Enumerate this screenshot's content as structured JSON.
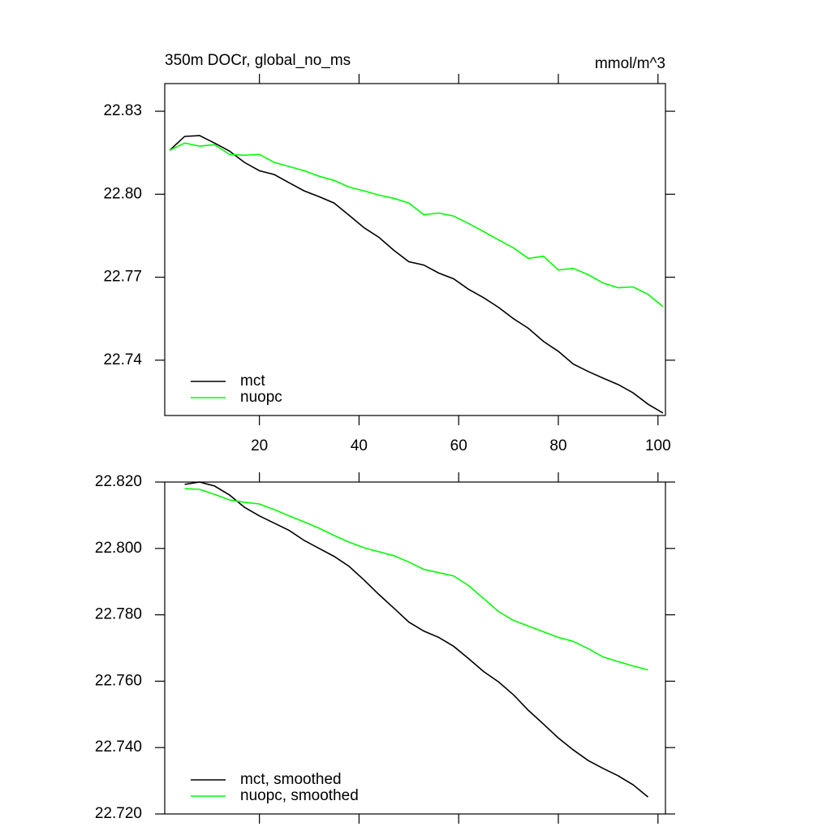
{
  "chart_data": [
    {
      "type": "line",
      "title": "350m DOCr, global_no_ms",
      "units": "mmol/m^3",
      "x": [
        2,
        5,
        8,
        11,
        14,
        17,
        20,
        23,
        26,
        29,
        32,
        35,
        38,
        41,
        44,
        47,
        50,
        53,
        56,
        59,
        62,
        65,
        68,
        71,
        74,
        77,
        80,
        83,
        86,
        89,
        92,
        95,
        98,
        101
      ],
      "series": [
        {
          "name": "mct",
          "color": "#000000",
          "values": [
            22.8159,
            22.8209,
            22.8212,
            22.8185,
            22.8156,
            22.8115,
            22.8085,
            22.8071,
            22.8041,
            22.8012,
            22.7991,
            22.7968,
            22.7924,
            22.7879,
            22.7844,
            22.7797,
            22.7756,
            22.7744,
            22.7715,
            22.7694,
            22.7656,
            22.7626,
            22.7591,
            22.755,
            22.7515,
            22.7468,
            22.7432,
            22.7386,
            22.7359,
            22.7335,
            22.7312,
            22.7282,
            22.7241,
            22.7209
          ]
        },
        {
          "name": "nuopc",
          "color": "#00ff00",
          "values": [
            22.8159,
            22.8185,
            22.8174,
            22.8179,
            22.8144,
            22.8141,
            22.8144,
            22.8115,
            22.81,
            22.8085,
            22.8065,
            22.805,
            22.8026,
            22.8012,
            22.7997,
            22.7985,
            22.7968,
            22.7926,
            22.7932,
            22.7921,
            22.7894,
            22.7865,
            22.7835,
            22.7806,
            22.7768,
            22.7776,
            22.7726,
            22.7732,
            22.7709,
            22.7679,
            22.7662,
            22.7665,
            22.7638,
            22.7594
          ]
        }
      ],
      "xlim": [
        1,
        101.5
      ],
      "xticks": [
        20,
        40,
        60,
        80,
        100
      ],
      "xtick_labels": true,
      "ylim": [
        22.72,
        22.84
      ],
      "yticks": [
        22.83,
        {
          "value": 22.8,
          "label": "22.80"
        },
        22.77,
        22.74
      ],
      "legend": "lower left"
    },
    {
      "type": "line",
      "x": [
        5,
        8,
        11,
        14,
        17,
        20,
        23,
        26,
        29,
        32,
        35,
        38,
        41,
        44,
        47,
        50,
        53,
        56,
        59,
        62,
        65,
        68,
        71,
        74,
        77,
        80,
        83,
        86,
        89,
        92,
        95,
        98
      ],
      "series": [
        {
          "name": "mct, smoothed",
          "color": "#000000",
          "values": [
            22.8193,
            22.82,
            22.8188,
            22.8161,
            22.8124,
            22.8098,
            22.8076,
            22.8054,
            22.8024,
            22.8,
            22.7976,
            22.7946,
            22.7905,
            22.7861,
            22.782,
            22.7778,
            22.7751,
            22.7732,
            22.7705,
            22.7668,
            22.7629,
            22.7598,
            22.7559,
            22.7512,
            22.7471,
            22.7429,
            22.7393,
            22.7361,
            22.7337,
            22.7315,
            22.7288,
            22.7251
          ]
        },
        {
          "name": "nuopc, smoothed",
          "color": "#00ff00",
          "values": [
            22.818,
            22.8178,
            22.8163,
            22.8146,
            22.8139,
            22.8134,
            22.8117,
            22.8098,
            22.808,
            22.8061,
            22.8039,
            22.8019,
            22.8002,
            22.799,
            22.7978,
            22.7959,
            22.7937,
            22.7927,
            22.7917,
            22.7888,
            22.7849,
            22.781,
            22.7783,
            22.7766,
            22.7749,
            22.7732,
            22.772,
            22.7698,
            22.7673,
            22.7659,
            22.7646,
            22.7634
          ]
        }
      ],
      "xlim": [
        1,
        101.5
      ],
      "xticks": [
        20,
        40,
        60,
        80,
        100
      ],
      "xtick_labels": false,
      "ylim": [
        22.72,
        22.82
      ],
      "yticks": [
        {
          "value": 22.82,
          "label": "22.820"
        },
        {
          "value": 22.8,
          "label": "22.800"
        },
        {
          "value": 22.78,
          "label": "22.780"
        },
        {
          "value": 22.76,
          "label": "22.760"
        },
        {
          "value": 22.74,
          "label": "22.740"
        },
        {
          "value": 22.72,
          "label": "22.720"
        }
      ],
      "legend": "lower left"
    }
  ]
}
